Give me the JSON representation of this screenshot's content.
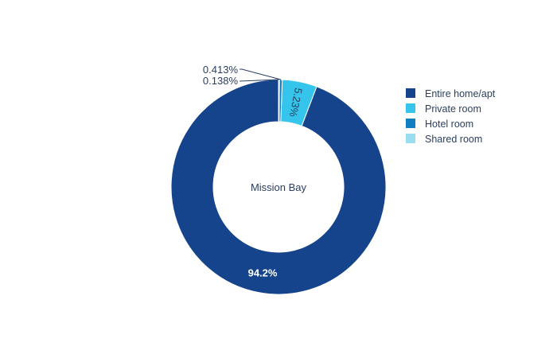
{
  "chart_data": {
    "type": "pie",
    "hole_label": "Mission Bay",
    "slices": [
      {
        "label": "Entire home/apt",
        "value": 94.2,
        "value_label": "94.2%",
        "color": "#15448c"
      },
      {
        "label": "Private room",
        "value": 5.23,
        "value_label": "5.23%",
        "color": "#35c4eb"
      },
      {
        "label": "Hotel room",
        "value": 0.413,
        "value_label": "0.413%",
        "color": "#0f7fc2"
      },
      {
        "label": "Shared room",
        "value": 0.138,
        "value_label": "0.138%",
        "color": "#9adcf0"
      }
    ],
    "legend": {
      "position": "right",
      "items": [
        "Entire home/apt",
        "Private room",
        "Hotel room",
        "Shared room"
      ]
    }
  }
}
